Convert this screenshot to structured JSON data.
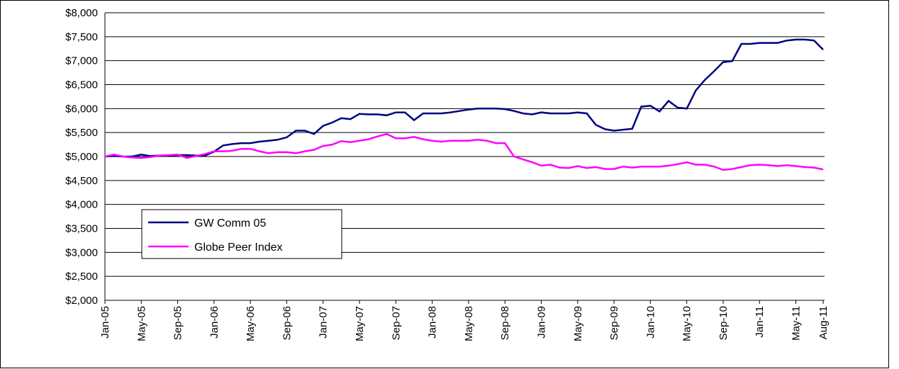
{
  "chart_data": {
    "type": "line",
    "categories": [
      "Jan-05",
      null,
      null,
      null,
      "May-05",
      null,
      null,
      null,
      "Sep-05",
      null,
      null,
      null,
      "Jan-06",
      null,
      null,
      null,
      "May-06",
      null,
      null,
      null,
      "Sep-06",
      null,
      null,
      null,
      "Jan-07",
      null,
      null,
      null,
      "May-07",
      null,
      null,
      null,
      "Sep-07",
      null,
      null,
      null,
      "Jan-08",
      null,
      null,
      null,
      "May-08",
      null,
      null,
      null,
      "Sep-08",
      null,
      null,
      null,
      "Jan-09",
      null,
      null,
      null,
      "May-09",
      null,
      null,
      null,
      "Sep-09",
      null,
      null,
      null,
      "Jan-10",
      null,
      null,
      null,
      "May-10",
      null,
      null,
      null,
      "Sep-10",
      null,
      null,
      null,
      "Jan-11",
      null,
      null,
      null,
      "May-11",
      null,
      null,
      "Aug-11"
    ],
    "series": [
      {
        "name": "GW Comm 05",
        "color": "#000080",
        "values": [
          5000,
          5010,
          5000,
          5000,
          5040,
          5010,
          5020,
          5020,
          5030,
          5030,
          5020,
          5020,
          5100,
          5230,
          5260,
          5280,
          5280,
          5310,
          5330,
          5350,
          5400,
          5540,
          5540,
          5470,
          5640,
          5710,
          5800,
          5780,
          5890,
          5880,
          5880,
          5860,
          5920,
          5920,
          5760,
          5900,
          5900,
          5900,
          5920,
          5950,
          5980,
          6000,
          6000,
          6000,
          5990,
          5950,
          5900,
          5880,
          5920,
          5900,
          5900,
          5900,
          5920,
          5900,
          5660,
          5570,
          5540,
          5560,
          5580,
          6040,
          6060,
          5940,
          6160,
          6020,
          6000,
          6380,
          6600,
          6780,
          6970,
          6990,
          7350,
          7350,
          7370,
          7370,
          7370,
          7420,
          7440,
          7440,
          7420,
          7230
        ]
      },
      {
        "name": "Globe Peer Index",
        "color": "#ff00ff",
        "values": [
          5000,
          5040,
          5000,
          4980,
          4970,
          4990,
          5020,
          5030,
          5040,
          4970,
          5010,
          5050,
          5110,
          5110,
          5120,
          5160,
          5160,
          5110,
          5070,
          5090,
          5090,
          5070,
          5110,
          5140,
          5220,
          5250,
          5320,
          5300,
          5330,
          5360,
          5420,
          5470,
          5380,
          5380,
          5410,
          5360,
          5330,
          5310,
          5330,
          5330,
          5330,
          5350,
          5330,
          5280,
          5280,
          5000,
          4940,
          4880,
          4810,
          4830,
          4770,
          4760,
          4800,
          4760,
          4780,
          4740,
          4740,
          4790,
          4770,
          4790,
          4790,
          4790,
          4810,
          4840,
          4880,
          4830,
          4830,
          4790,
          4720,
          4740,
          4780,
          4820,
          4830,
          4820,
          4800,
          4820,
          4800,
          4780,
          4770,
          4730
        ]
      }
    ],
    "ylim": [
      2000,
      8000
    ],
    "yticks": [
      {
        "value": 2000,
        "label": "$2,000"
      },
      {
        "value": 2500,
        "label": "$2,500"
      },
      {
        "value": 3000,
        "label": "$3,000"
      },
      {
        "value": 3500,
        "label": "$3,500"
      },
      {
        "value": 4000,
        "label": "$4,000"
      },
      {
        "value": 4500,
        "label": "$4,500"
      },
      {
        "value": 5000,
        "label": "$5,000"
      },
      {
        "value": 5500,
        "label": "$5,500"
      },
      {
        "value": 6000,
        "label": "$6,000"
      },
      {
        "value": 6500,
        "label": "$6,500"
      },
      {
        "value": 7000,
        "label": "$7,000"
      },
      {
        "value": 7500,
        "label": "$7,500"
      },
      {
        "value": 8000,
        "label": "$8,000"
      }
    ],
    "grid": true
  }
}
